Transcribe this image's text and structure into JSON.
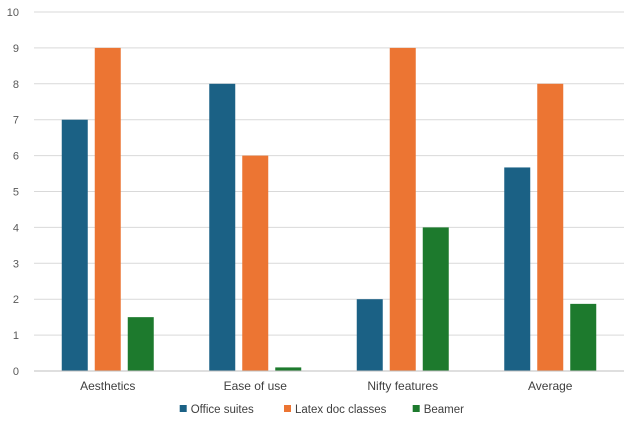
{
  "chart_data": {
    "type": "bar",
    "categories": [
      "Aesthetics",
      "Ease of use",
      "Nifty features",
      "Average"
    ],
    "series": [
      {
        "name": "Office suites",
        "color": "#1b6185",
        "values": [
          7,
          8,
          2,
          5.67
        ]
      },
      {
        "name": "Latex doc classes",
        "color": "#ec7533",
        "values": [
          9,
          6,
          9,
          8
        ]
      },
      {
        "name": "Beamer",
        "color": "#1d7a2d",
        "values": [
          1.5,
          0.1,
          4,
          1.87
        ]
      }
    ],
    "ylim": [
      0,
      10
    ],
    "yticks": [
      "0",
      "1",
      "2",
      "3",
      "4",
      "5",
      "6",
      "7",
      "8",
      "9",
      "10"
    ],
    "grid": true,
    "legend": "bottom",
    "colors": {
      "grid": "#d9d9d9",
      "axis": "#bfbfbf",
      "text": "#595959"
    }
  }
}
